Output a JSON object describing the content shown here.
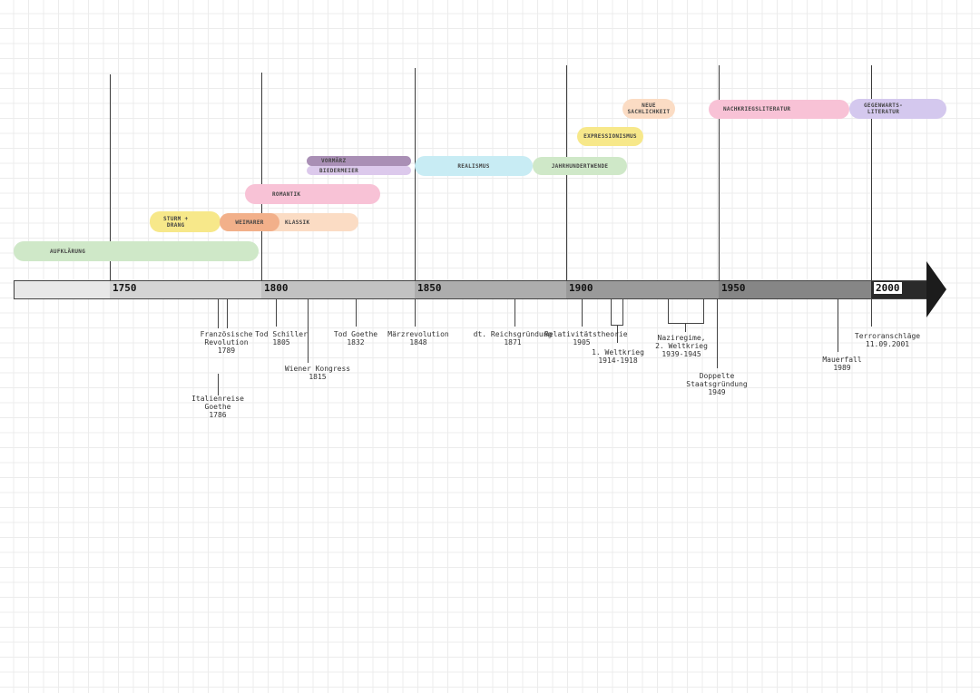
{
  "axis": {
    "years": [
      "1750",
      "1800",
      "1850",
      "1900",
      "1950",
      "2000"
    ]
  },
  "epochs": {
    "aufklarung": "AUFKLÄRUNG",
    "sturm_drang": "STURM +\nDRANG",
    "weimarer": "WEIMARER",
    "klassik": "KLASSIK",
    "romantik": "ROMANTIK",
    "vormarz": "VORMÄRZ",
    "biedermeier": "BIEDERMEIER",
    "realismus": "REALISMUS",
    "jahrhundertwende": "JAHRHUNDERTWENDE",
    "expressionismus": "EXPRESSIONISMUS",
    "neue_sachlichkeit": "NEUE\nSACHLICHKEIT",
    "nachkriegsliteratur": "NACHKRIEGSLITERATUR",
    "gegenwartsliteratur": "GEGENWARTS-\nLITERATUR"
  },
  "colors": {
    "aufklarung": "#cfe8c8",
    "sturm_drang": "#f7e88a",
    "weimarer": "#f2b08a",
    "klassik": "#fbdcc4",
    "romantik": "#f8c2d6",
    "vormarz": "#a98fb5",
    "biedermeier": "#dcc9ec",
    "realismus": "#c8ecf4",
    "jahrhundertwende": "#cfe8c8",
    "expressionismus": "#f7e88a",
    "neue_sachlichkeit": "#fbdcc4",
    "nachkriegsliteratur": "#f8c2d6",
    "gegenwartsliteratur": "#d4c8ee"
  },
  "events": {
    "franz_revolution": "Französische\nRevolution\n1789",
    "italienreise": "Italienreise\nGoethe\n1786",
    "tod_schiller": "Tod Schiller\n1805",
    "wiener_kongress": "Wiener Kongress\n1815",
    "tod_goethe": "Tod Goethe\n1832",
    "marzrevolution": "Märzrevolution\n1848",
    "reichsgrundung": "dt. Reichsgründung\n1871",
    "relativitatstheorie": "Relativitätstheorie\n1905",
    "weltkrieg1": "1. Weltkrieg\n1914-1918",
    "naziregime": "Naziregime,\n2. Weltkrieg\n1939-1945",
    "doppelte_staatsgrundung": "Doppelte\nStaatsgründung\n1949",
    "mauerfall": "Mauerfall\n1989",
    "terroranschlage": "Terroranschläge\n11.09.2001"
  }
}
